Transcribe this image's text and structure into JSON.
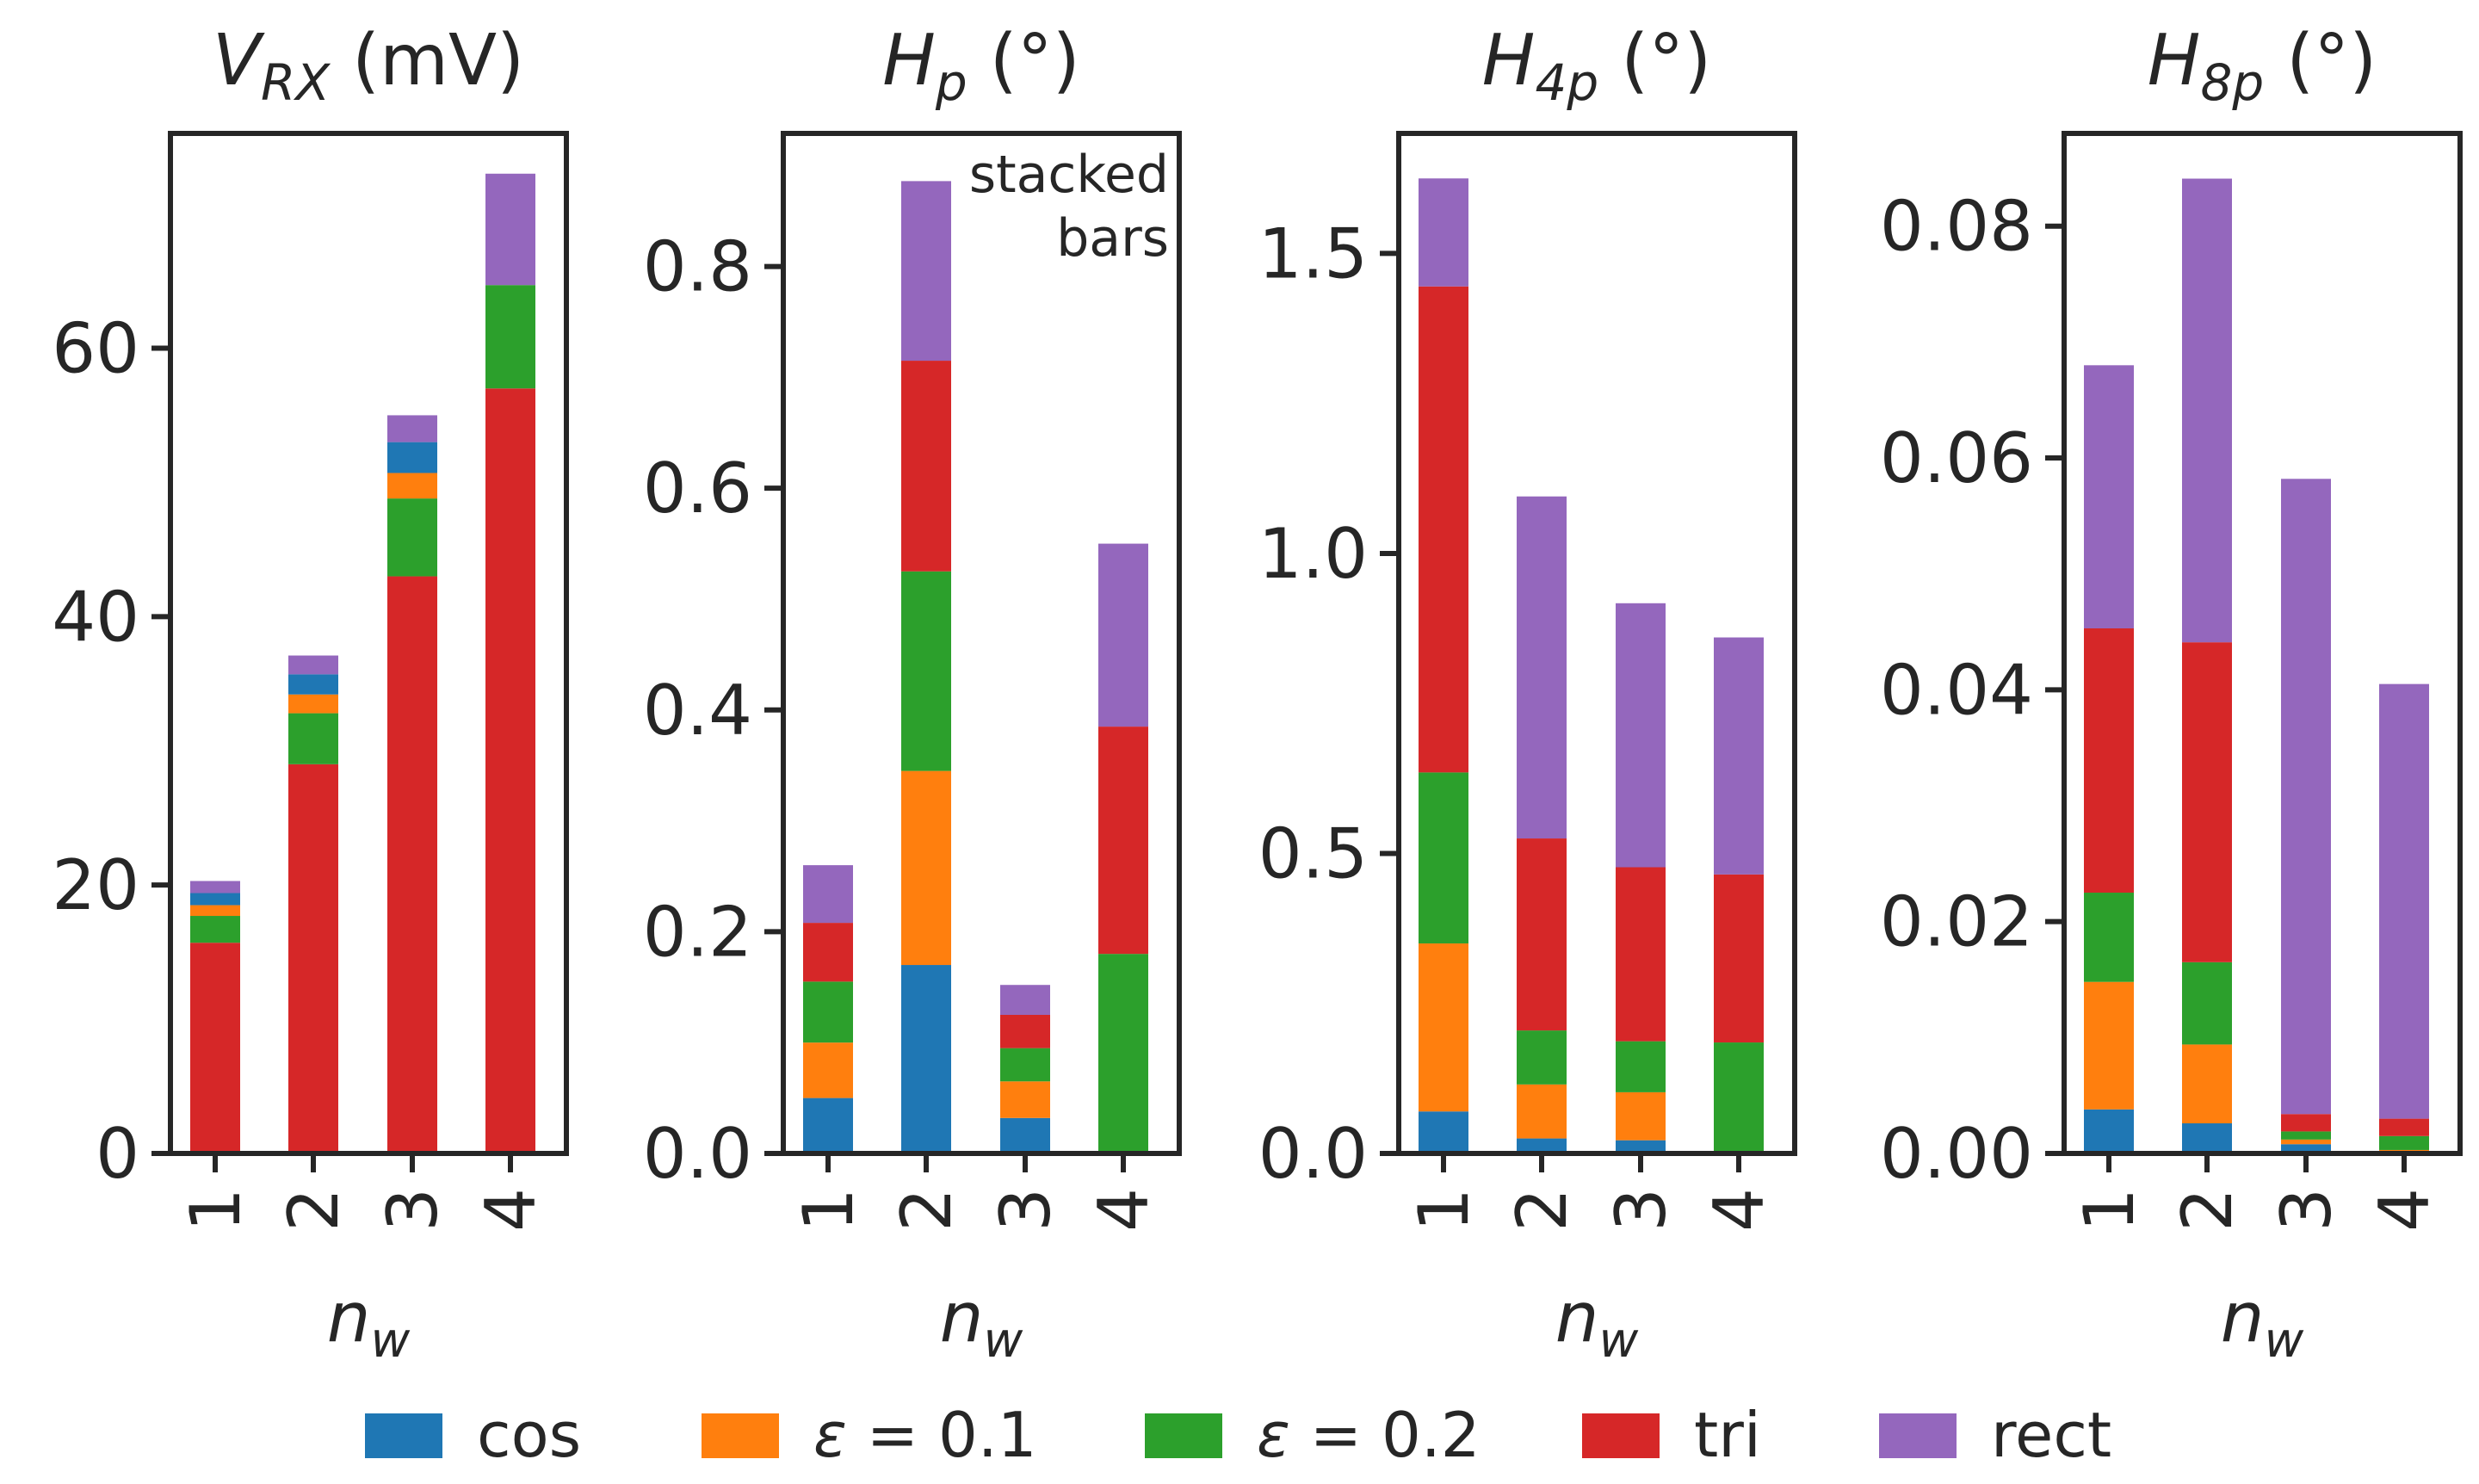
{
  "chart_data": {
    "type": "bar",
    "stacked": true,
    "legend": [
      {
        "key": "cos",
        "label": "cos",
        "color": "#1f77b4"
      },
      {
        "key": "eps01",
        "label": "ε = 0.1",
        "color": "#ff7f0e"
      },
      {
        "key": "eps02",
        "label": "ε = 0.2",
        "color": "#2ca02c"
      },
      {
        "key": "tri",
        "label": "tri",
        "color": "#d62728"
      },
      {
        "key": "rect",
        "label": "rect",
        "color": "#9467bd"
      }
    ],
    "legend_position": "bottom-center",
    "panels": [
      {
        "title_main": "V",
        "title_sub": "RX",
        "title_unit": " (mV)",
        "xlabel_main": "n",
        "xlabel_sub": "w",
        "categories": [
          "1",
          "2",
          "3",
          "4"
        ],
        "ylim": [
          0,
          76
        ],
        "yticks": [
          0,
          20,
          40,
          60
        ],
        "ytick_labels": [
          "0",
          "20",
          "40",
          "60"
        ],
        "annotation": null,
        "series": [
          {
            "name": "tri",
            "values": [
              15.7,
              29.0,
              43.0,
              57.0
            ]
          },
          {
            "name": "eps02",
            "values": [
              2.0,
              3.8,
              5.8,
              7.7
            ]
          },
          {
            "name": "eps01",
            "values": [
              0.8,
              1.4,
              1.9,
              0.0
            ]
          },
          {
            "name": "cos",
            "values": [
              0.9,
              1.5,
              2.3,
              0.0
            ]
          },
          {
            "name": "rect",
            "values": [
              0.9,
              1.4,
              2.0,
              8.3
            ]
          }
        ]
      },
      {
        "title_main": "H",
        "title_sub": "p",
        "title_unit": " (°)",
        "xlabel_main": "n",
        "xlabel_sub": "w",
        "categories": [
          "1",
          "2",
          "3",
          "4"
        ],
        "ylim": [
          0,
          0.92
        ],
        "yticks": [
          0,
          0.2,
          0.4,
          0.6,
          0.8
        ],
        "ytick_labels": [
          "0.0",
          "0.2",
          "0.4",
          "0.6",
          "0.8"
        ],
        "annotation": [
          "stacked",
          "bars"
        ],
        "series": [
          {
            "name": "cos",
            "values": [
              0.05,
              0.17,
              0.032,
              0.0
            ]
          },
          {
            "name": "eps01",
            "values": [
              0.05,
              0.175,
              0.033,
              0.0
            ]
          },
          {
            "name": "eps02",
            "values": [
              0.055,
              0.18,
              0.03,
              0.18
            ]
          },
          {
            "name": "tri",
            "values": [
              0.053,
              0.19,
              0.03,
              0.205
            ]
          },
          {
            "name": "rect",
            "values": [
              0.052,
              0.162,
              0.027,
              0.165
            ]
          }
        ]
      },
      {
        "title_main": "H",
        "title_sub": "4p",
        "title_unit": " (°)",
        "xlabel_main": "n",
        "xlabel_sub": "w",
        "categories": [
          "1",
          "2",
          "3",
          "4"
        ],
        "ylim": [
          0,
          1.7
        ],
        "yticks": [
          0,
          0.5,
          1.0,
          1.5
        ],
        "ytick_labels": [
          "0.0",
          "0.5",
          "1.0",
          "1.5"
        ],
        "annotation": null,
        "series": [
          {
            "name": "cos",
            "values": [
              0.07,
              0.025,
              0.022,
              0.0
            ]
          },
          {
            "name": "eps01",
            "values": [
              0.28,
              0.09,
              0.08,
              0.0
            ]
          },
          {
            "name": "eps02",
            "values": [
              0.285,
              0.09,
              0.085,
              0.185
            ]
          },
          {
            "name": "tri",
            "values": [
              0.81,
              0.32,
              0.29,
              0.28
            ]
          },
          {
            "name": "rect",
            "values": [
              0.18,
              0.57,
              0.44,
              0.395
            ]
          }
        ]
      },
      {
        "title_main": "H",
        "title_sub": "8p",
        "title_unit": " (°)",
        "xlabel_main": "n",
        "xlabel_sub": "w",
        "categories": [
          "1",
          "2",
          "3",
          "4"
        ],
        "ylim": [
          0,
          0.088
        ],
        "yticks": [
          0,
          0.02,
          0.04,
          0.06,
          0.08
        ],
        "ytick_labels": [
          "0.00",
          "0.02",
          "0.04",
          "0.06",
          "0.08"
        ],
        "annotation": null,
        "series": [
          {
            "name": "cos",
            "values": [
              0.0038,
              0.0026,
              0.0008,
              0.0002
            ]
          },
          {
            "name": "eps01",
            "values": [
              0.011,
              0.0068,
              0.0004,
              0.0001
            ]
          },
          {
            "name": "eps02",
            "values": [
              0.0077,
              0.0071,
              0.0007,
              0.0012
            ]
          },
          {
            "name": "tri",
            "values": [
              0.0228,
              0.0276,
              0.0015,
              0.0015
            ]
          },
          {
            "name": "rect",
            "values": [
              0.0227,
              0.04,
              0.0548,
              0.0375
            ]
          }
        ]
      }
    ]
  }
}
